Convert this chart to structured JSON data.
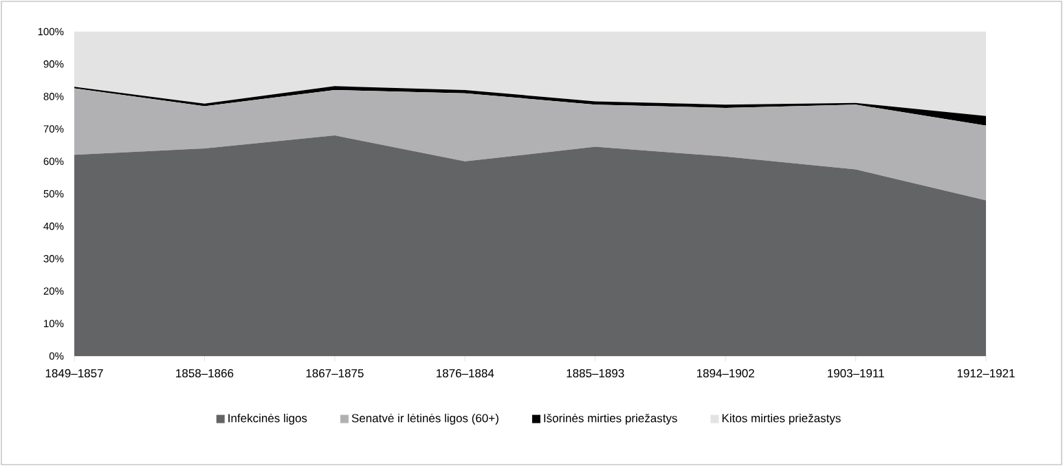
{
  "chart_data": {
    "type": "area",
    "stacked": true,
    "legend": "bottom",
    "categories": [
      "1849–1857",
      "1858–1866",
      "1867–1875",
      "1876–1884",
      "1885–1893",
      "1894–1902",
      "1903–1911",
      "1912–1921"
    ],
    "ylim": [
      0,
      100
    ],
    "yticks": [
      {
        "value": 0,
        "label": "0%"
      },
      {
        "value": 10,
        "label": "10%"
      },
      {
        "value": 20,
        "label": "20%"
      },
      {
        "value": 30,
        "label": "30%"
      },
      {
        "value": 40,
        "label": "40%"
      },
      {
        "value": 50,
        "label": "50%"
      },
      {
        "value": 60,
        "label": "60%"
      },
      {
        "value": 70,
        "label": "70%"
      },
      {
        "value": 80,
        "label": "80%"
      },
      {
        "value": 90,
        "label": "90%"
      },
      {
        "value": 100,
        "label": "100%"
      }
    ],
    "series": [
      {
        "name": "Infekcinės ligos",
        "color": "#636466",
        "values": [
          62,
          64,
          68,
          60,
          64.5,
          61.5,
          57.5,
          48
        ]
      },
      {
        "name": "Senatvė ir lėtinės ligos (60+)",
        "color": "#b1b1b3",
        "values": [
          20.5,
          13,
          14,
          21,
          13,
          15,
          20,
          23
        ]
      },
      {
        "name": "Išorinės mirties priežastys",
        "color": "#000000",
        "values": [
          0.5,
          0.8,
          1.2,
          1,
          1,
          1,
          0.5,
          3
        ]
      },
      {
        "name": "Kitos mirties priežastys",
        "color": "#e3e3e3",
        "values": [
          17,
          22.2,
          16.8,
          18,
          21.5,
          22.5,
          22,
          26
        ]
      }
    ]
  }
}
